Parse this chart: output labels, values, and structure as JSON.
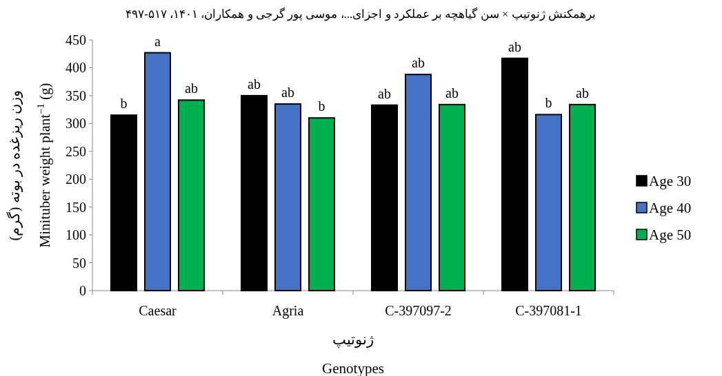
{
  "chart_data": {
    "type": "bar",
    "title": "برهمکنش ژنوتیپ × سن گیاهچه بر عملکرد و اجزای...، موسی پور گرجی و همکاران، ۱۴۰۱، ۵۱۷-۴۹۷",
    "ylabel": "وزن ریزغده در بوته (گرم)\nMinituber weight plant$^{−1}$ (g)",
    "xlabel": "ژنوتیپ\nGenotypes",
    "categories": [
      "Caesar",
      "Agria",
      "C-397097-2",
      "C-397081-1"
    ],
    "series": [
      {
        "name": "Age 30",
        "color": "#000000",
        "values": [
          315,
          350,
          333,
          417
        ],
        "value_labels": [
          "b",
          "ab",
          "ab",
          "ab"
        ]
      },
      {
        "name": "Age 40",
        "color": "#4472c4",
        "values": [
          427,
          335,
          388,
          316
        ],
        "value_labels": [
          "a",
          "ab",
          "ab",
          "b"
        ]
      },
      {
        "name": "Age 50",
        "color": "#00b050",
        "values": [
          342,
          310,
          334,
          334
        ],
        "value_labels": [
          "ab",
          "b",
          "ab",
          "ab"
        ]
      }
    ],
    "ylim": [
      0,
      450
    ],
    "yticks": [
      0,
      50,
      100,
      150,
      200,
      250,
      300,
      350,
      400,
      450
    ],
    "grid": false,
    "legend": "right"
  }
}
